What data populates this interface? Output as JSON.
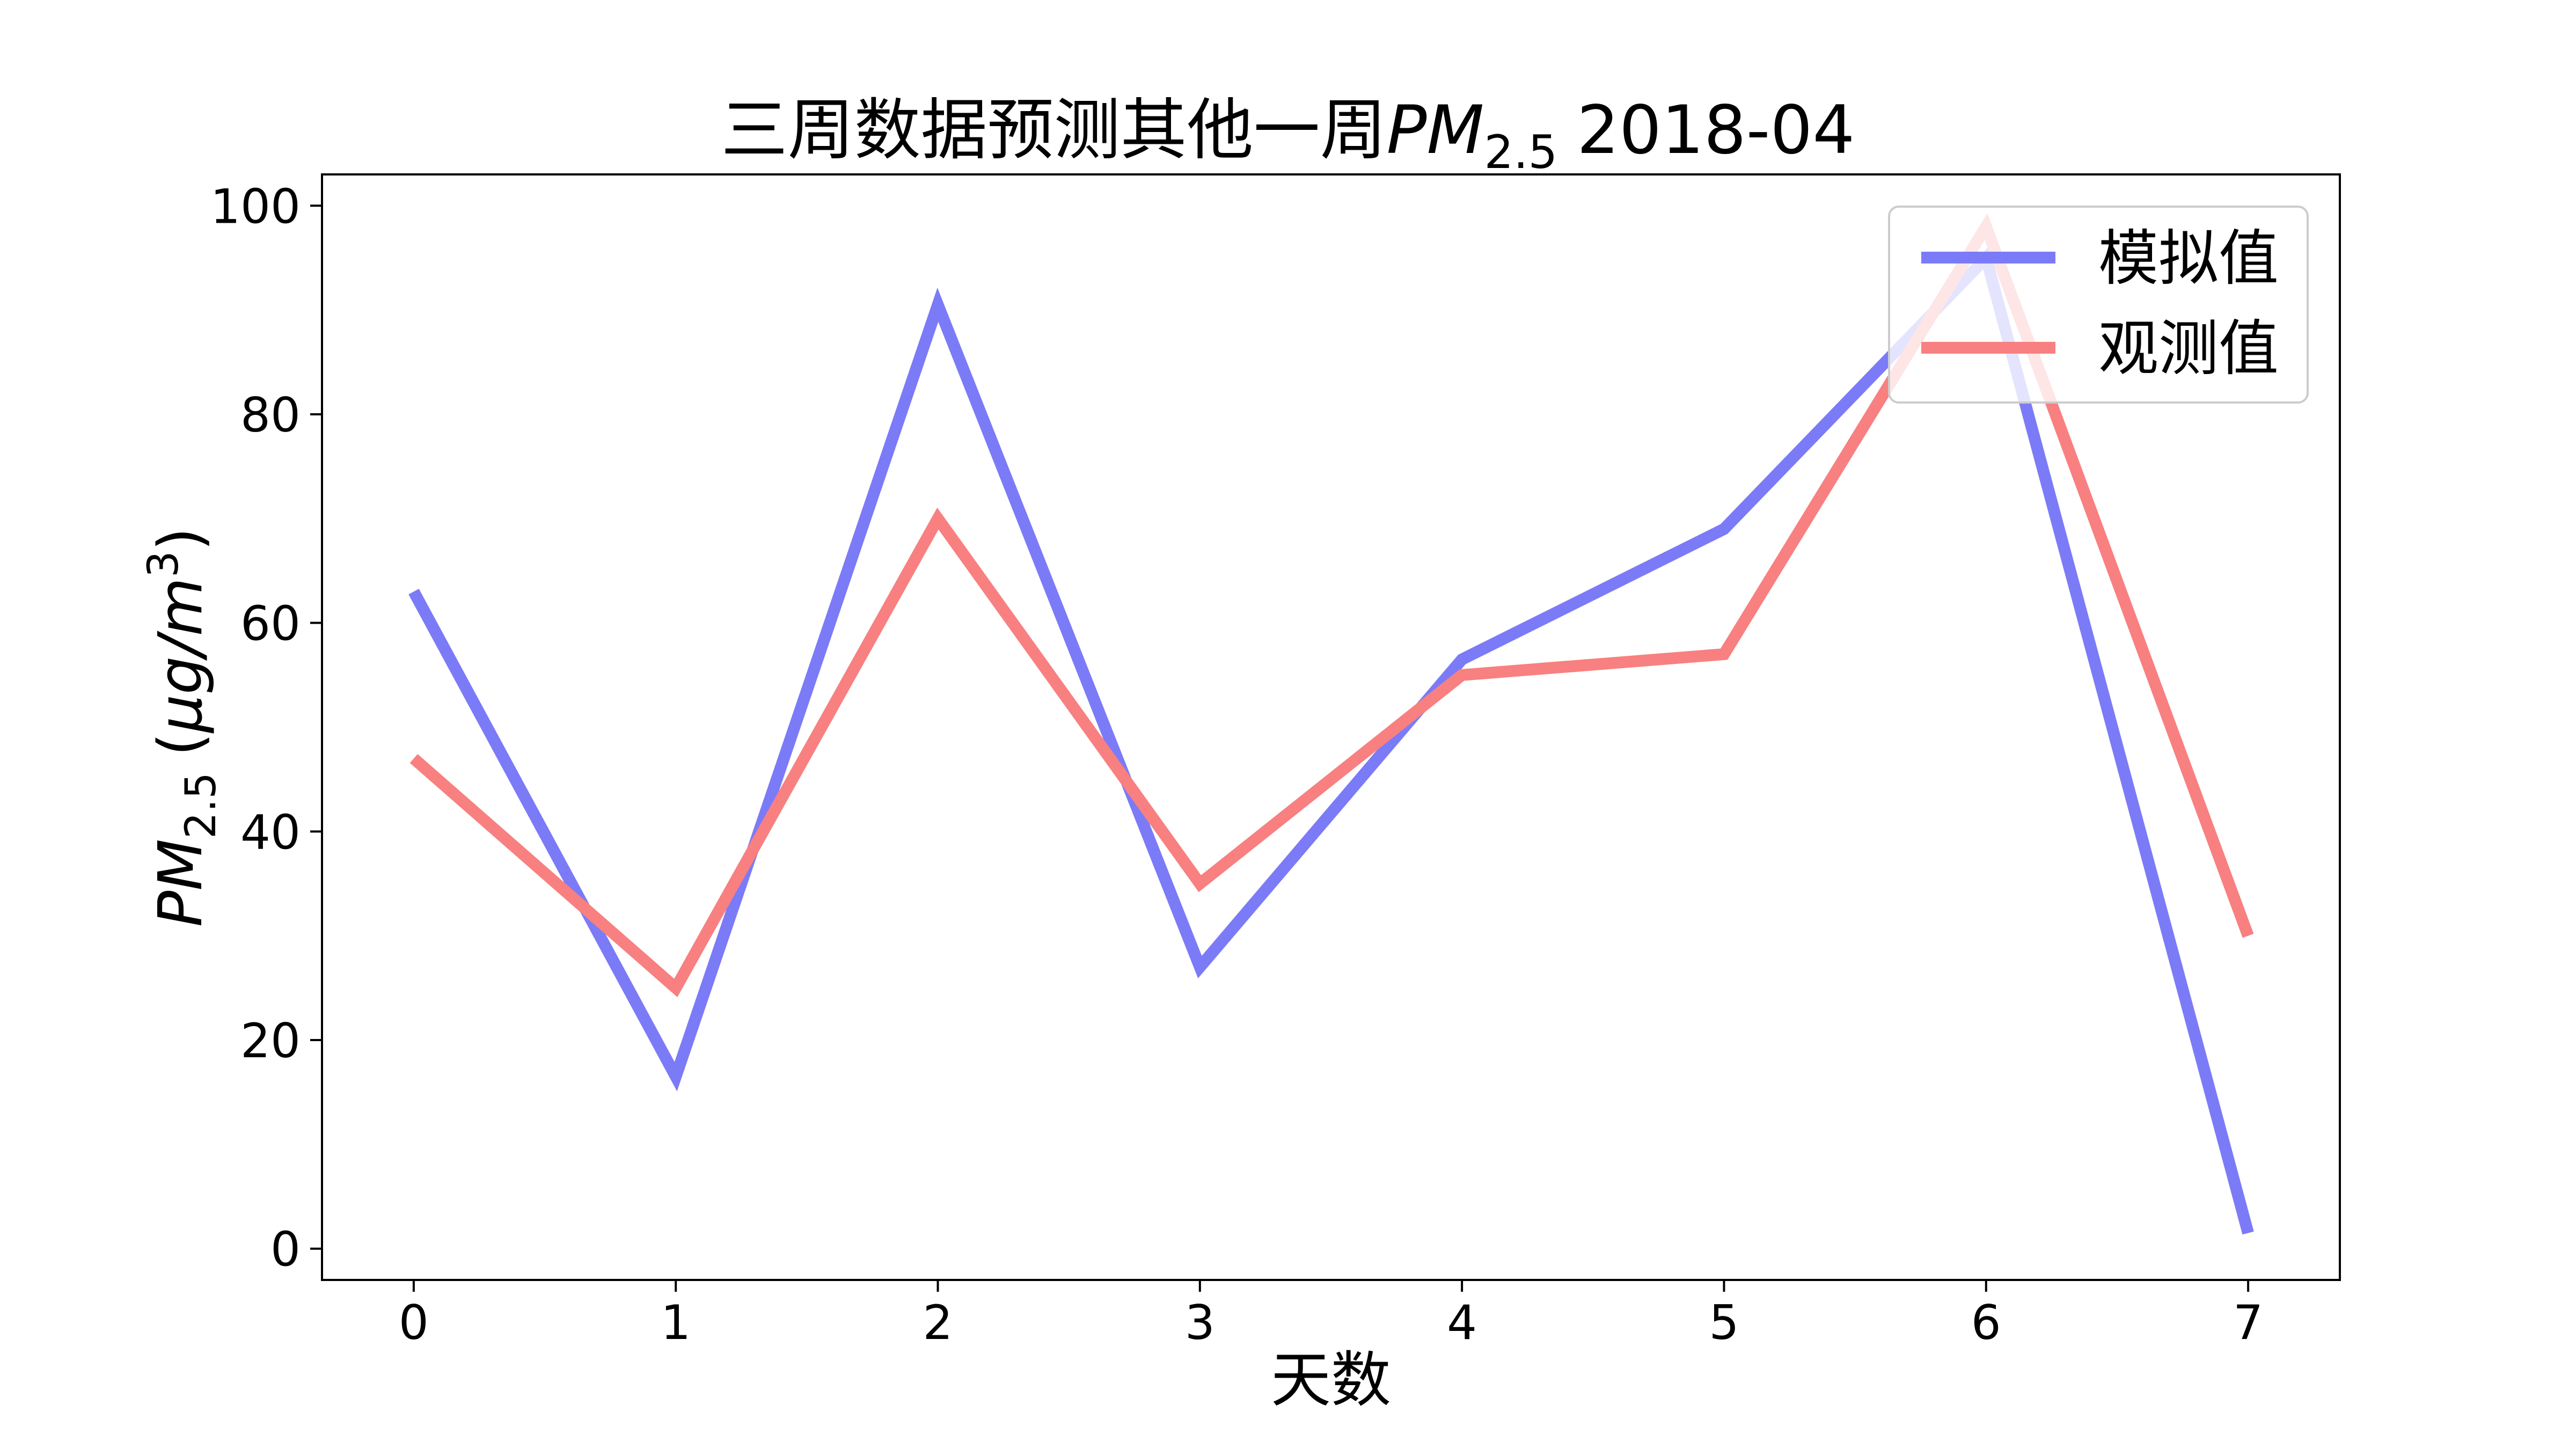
{
  "chart_data": {
    "type": "line",
    "title": {
      "prefix": "三周数据预测其他一周",
      "pm_main": "PM",
      "pm_sub": "2.5",
      "suffix": "2018-04"
    },
    "xlabel": "天数",
    "ylabel": {
      "pm_main": "PM",
      "pm_sub": "2.5",
      "unit_open": "(",
      "unit_body": "μg/m",
      "unit_sup": "3",
      "unit_close": ")"
    },
    "x": [
      0,
      1,
      2,
      3,
      4,
      5,
      6,
      7
    ],
    "xlim": [
      -0.35,
      7.35
    ],
    "ylim": [
      -3,
      103
    ],
    "xticks": [
      0,
      1,
      2,
      3,
      4,
      5,
      6,
      7
    ],
    "yticks": [
      0,
      20,
      40,
      60,
      80,
      100
    ],
    "grid": false,
    "legend_position": "top-right",
    "series": [
      {
        "name": "模拟值",
        "color": "#7b7bf7",
        "values": [
          63,
          16.5,
          90.5,
          27,
          56.5,
          69,
          95,
          1.5
        ]
      },
      {
        "name": "观测值",
        "color": "#f88080",
        "values": [
          47,
          25,
          70,
          35,
          55,
          57,
          98,
          30
        ]
      }
    ]
  }
}
